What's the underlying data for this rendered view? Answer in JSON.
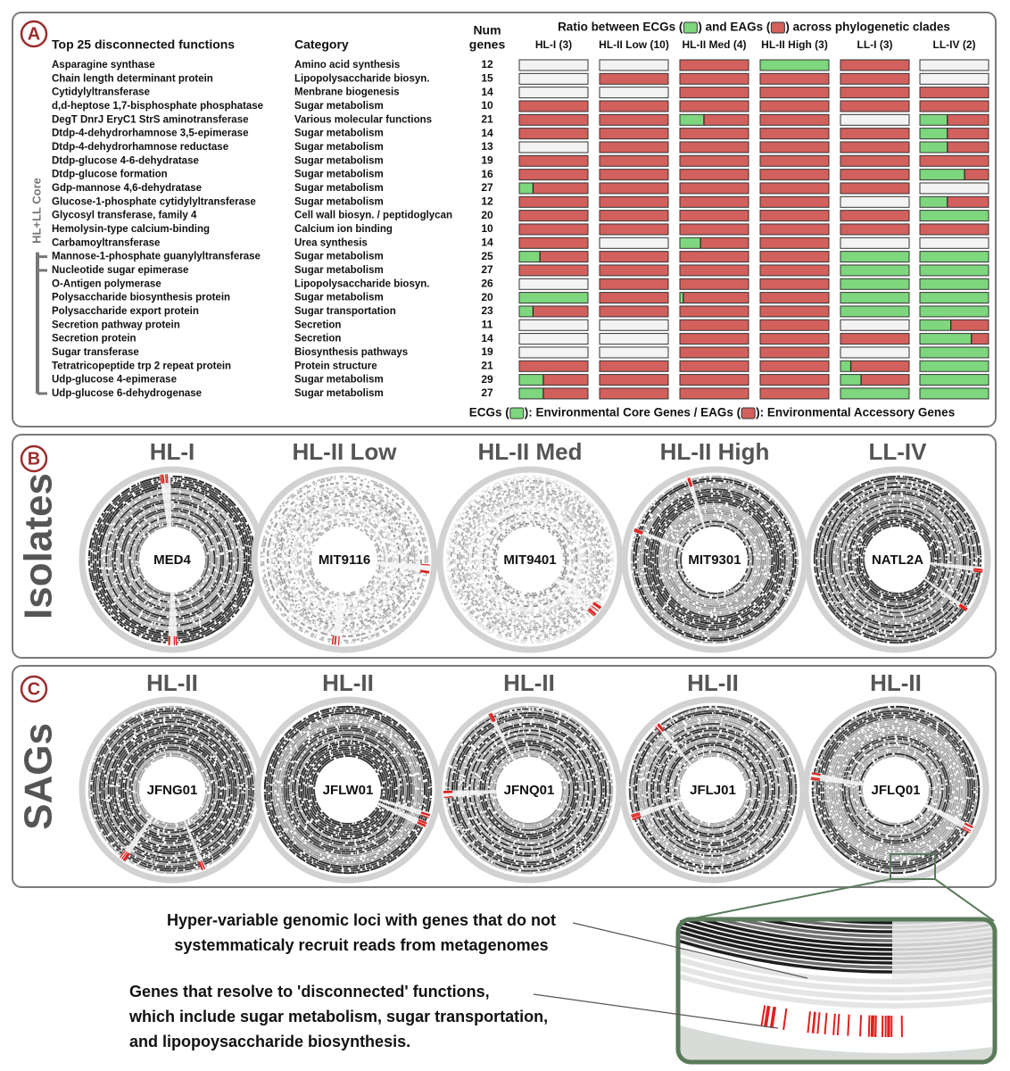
{
  "panel_a": {
    "label": "A",
    "header_function": "Top 25 disconnected functions",
    "header_category": "Category",
    "header_num_genes": [
      "Num",
      "genes"
    ],
    "header_ratio": [
      "Ratio between ECGs (",
      ") and EAGs (",
      ") across phylogenetic clades"
    ],
    "clades": [
      "HL-I (3)",
      "HL-II Low (10)",
      "HL-II Med (4)",
      "HL-II High (3)",
      "LL-I (3)",
      "LL-IV (2)"
    ],
    "bracket_label": "HL+LL Core",
    "legend": [
      "ECGs (",
      "): Environmental Core Genes / EAGs (",
      "): Environmental Accessory Genes"
    ],
    "ecg_color": "#7ed67e",
    "eag_color": "#d2605d",
    "absent_color": "#f3f3f3",
    "rows": [
      {
        "function": "Asparagine synthase",
        "category": "Amino acid synthesis",
        "num_genes": 12,
        "ecg_fraction": [
          null,
          null,
          0,
          1,
          0,
          null
        ]
      },
      {
        "function": "Chain length determinant protein",
        "category": "Lipopolysaccharide biosyn.",
        "num_genes": 15,
        "ecg_fraction": [
          null,
          0,
          0,
          0,
          0,
          null
        ]
      },
      {
        "function": "Cytidylyltransferase",
        "category": "Menbrane biogenesis",
        "num_genes": 14,
        "ecg_fraction": [
          null,
          null,
          0,
          0,
          0,
          0
        ]
      },
      {
        "function": "d,d-heptose 1,7-bisphosphate phosphatase",
        "category": "Sugar metabolism",
        "num_genes": 10,
        "ecg_fraction": [
          0,
          0,
          0,
          0,
          0,
          0
        ]
      },
      {
        "function": "DegT DnrJ EryC1 StrS aminotransferase",
        "category": "Various molecular functions",
        "num_genes": 21,
        "ecg_fraction": [
          0,
          0,
          0.35,
          0,
          null,
          0.4
        ]
      },
      {
        "function": "Dtdp-4-dehydrorhamnose 3,5-epimerase",
        "category": "Sugar metabolism",
        "num_genes": 14,
        "ecg_fraction": [
          0,
          0,
          0,
          0,
          0,
          0.4
        ]
      },
      {
        "function": "Dtdp-4-dehydrorhamnose reductase",
        "category": "Sugar metabolism",
        "num_genes": 13,
        "ecg_fraction": [
          null,
          0,
          0,
          0,
          0,
          0.4
        ]
      },
      {
        "function": "Dtdp-glucose 4-6-dehydratase",
        "category": "Sugar metabolism",
        "num_genes": 19,
        "ecg_fraction": [
          0,
          0,
          0,
          0,
          0,
          0
        ]
      },
      {
        "function": "Dtdp-glucose formation",
        "category": "Sugar metabolism",
        "num_genes": 16,
        "ecg_fraction": [
          0,
          0,
          0,
          0,
          0,
          0.65
        ]
      },
      {
        "function": "Gdp-mannose 4,6-dehydratase",
        "category": "Sugar metabolism",
        "num_genes": 27,
        "ecg_fraction": [
          0.2,
          0,
          0,
          0,
          0,
          null
        ]
      },
      {
        "function": "Glucose-1-phosphate cytidylyltransferase",
        "category": "Sugar metabolism",
        "num_genes": 12,
        "ecg_fraction": [
          0,
          0,
          0,
          0,
          null,
          0.4
        ]
      },
      {
        "function": "Glycosyl transferase, family 4",
        "category": "Cell wall biosyn. / peptidoglycan",
        "num_genes": 20,
        "ecg_fraction": [
          0,
          0,
          0,
          0,
          0,
          1
        ]
      },
      {
        "function": "Hemolysin-type calcium-binding",
        "category": "Calcium ion binding",
        "num_genes": 10,
        "ecg_fraction": [
          0,
          0,
          0,
          0,
          0,
          0
        ]
      },
      {
        "function": "Carbamoyltransferase",
        "category": "Urea synthesis",
        "num_genes": 14,
        "ecg_fraction": [
          0,
          null,
          0.3,
          0,
          null,
          null
        ]
      },
      {
        "function": "Mannose-1-phosphate guanylyltransferase",
        "category": "Sugar metabolism",
        "num_genes": 25,
        "ecg_fraction": [
          0.3,
          0,
          0,
          0,
          1,
          1
        ]
      },
      {
        "function": "Nucleotide sugar epimerase",
        "category": "Sugar metabolism",
        "num_genes": 27,
        "ecg_fraction": [
          0,
          0,
          0,
          0,
          1,
          1
        ]
      },
      {
        "function": "O-Antigen polymerase",
        "category": "Lipopolysaccharide biosyn.",
        "num_genes": 26,
        "ecg_fraction": [
          null,
          0,
          0,
          0,
          1,
          1
        ]
      },
      {
        "function": "Polysaccharide biosynthesis protein",
        "category": "Sugar metabolism",
        "num_genes": 20,
        "ecg_fraction": [
          1,
          0,
          0.05,
          0,
          1,
          1
        ]
      },
      {
        "function": "Polysaccharide export protein",
        "category": "Sugar transportation",
        "num_genes": 23,
        "ecg_fraction": [
          0.2,
          0,
          0,
          0,
          1,
          1
        ]
      },
      {
        "function": "Secretion pathway protein",
        "category": "Secretion",
        "num_genes": 11,
        "ecg_fraction": [
          null,
          null,
          0,
          0,
          null,
          0.45
        ]
      },
      {
        "function": "Secretion protein",
        "category": "Secretion",
        "num_genes": 14,
        "ecg_fraction": [
          null,
          null,
          0,
          0,
          0,
          0.75
        ]
      },
      {
        "function": "Sugar transferase",
        "category": "Biosynthesis pathways",
        "num_genes": 19,
        "ecg_fraction": [
          null,
          null,
          0,
          0,
          null,
          1
        ]
      },
      {
        "function": "Tetratricopeptide trp 2 repeat protein",
        "category": "Protein structure",
        "num_genes": 21,
        "ecg_fraction": [
          0,
          0,
          0,
          0,
          0.15,
          1
        ]
      },
      {
        "function": "Udp-glucose 4-epimerase",
        "category": "Sugar metabolism",
        "num_genes": 29,
        "ecg_fraction": [
          0.35,
          0,
          0,
          0,
          0.3,
          1
        ]
      },
      {
        "function": "Udp-glucose 6-dehydrogenase",
        "category": "Sugar metabolism",
        "num_genes": 27,
        "ecg_fraction": [
          0.35,
          0,
          0,
          0,
          1,
          1
        ]
      }
    ]
  },
  "panel_b": {
    "label": "B",
    "side_label": "Isolates",
    "plots": [
      {
        "title": "HL-I",
        "name": "MED4"
      },
      {
        "title": "HL-II Low",
        "name": "MIT9116"
      },
      {
        "title": "HL-II Med",
        "name": "MIT9401"
      },
      {
        "title": "HL-II High",
        "name": "MIT9301"
      },
      {
        "title": "LL-IV",
        "name": "NATL2A"
      }
    ]
  },
  "panel_c": {
    "label": "C",
    "side_label": "SAGs",
    "plots": [
      {
        "title": "HL-II",
        "name": "JFNG01"
      },
      {
        "title": "HL-II",
        "name": "JFLW01"
      },
      {
        "title": "HL-II",
        "name": "JFNQ01"
      },
      {
        "title": "HL-II",
        "name": "JFLJ01"
      },
      {
        "title": "HL-II",
        "name": "JFLQ01"
      }
    ]
  },
  "annotations": {
    "hypervariable": [
      "Hyper-variable genomic loci with genes that do not",
      "systemmaticaly recruit reads from metagenomes"
    ],
    "disconnected": [
      "Genes that resolve to 'disconnected' functions,",
      "which include sugar metabolism, sugar transportation,",
      "and lipopoysaccharide biosynthesis."
    ]
  }
}
